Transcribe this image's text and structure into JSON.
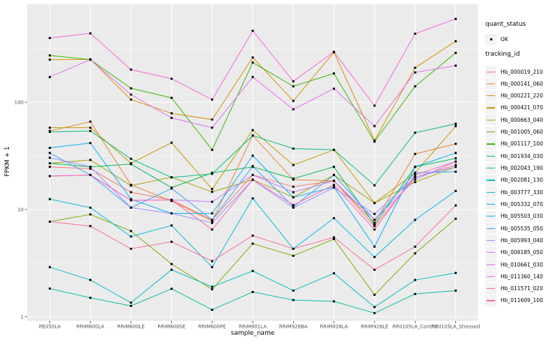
{
  "figure": {
    "background": "#FFFFFF",
    "panel_background": "#EBEBEB",
    "grid_color": "#FFFFFF",
    "tick_label_color": "#4D4D4D",
    "point_color": "#000000",
    "legend_key_fill": "#F2F2F2"
  },
  "chart_data": {
    "type": "line",
    "title": "",
    "xlabel": "sample_name",
    "ylabel": "FPKM + 1",
    "y_scale": "log10",
    "grid": true,
    "legend_position": "right",
    "ylim": [
      1,
      830
    ],
    "y_ticks": [
      {
        "label": "1",
        "value": 1
      },
      {
        "label": "10",
        "value": 10
      },
      {
        "label": "100",
        "value": 100
      }
    ],
    "y_minor_ticks": [
      3.162,
      31.623,
      316.228
    ],
    "categories": [
      "PB350LA",
      "RRIM600LA",
      "RRIM600LE",
      "RRIM600SE",
      "RRIM600PE",
      "RRIM901LA",
      "RRIM928BA",
      "RRIM928LA",
      "RRIM928LE",
      "RRII105LA_Control",
      "RRII105LA_Stressed"
    ],
    "legend": {
      "quant_status": {
        "title": "quant_status",
        "items": [
          {
            "label": "OK",
            "shape": "point",
            "color": "#000000"
          }
        ]
      },
      "tracking_id_title": "tracking_id"
    },
    "series": [
      {
        "name": "Hb_000019_210",
        "color": "#F8766D",
        "values": [
          25,
          24,
          14.5,
          12.3,
          8.0,
          21,
          16.3,
          18.5,
          7.0,
          20,
          26
        ]
      },
      {
        "name": "Hb_000141_060",
        "color": "#EA8331",
        "values": [
          54,
          66,
          17,
          12,
          7.8,
          49,
          19,
          18.5,
          7.5,
          33,
          41
        ]
      },
      {
        "name": "Hb_000221_220",
        "color": "#D89000",
        "values": [
          250,
          252,
          106,
          79,
          69,
          262,
          103,
          293,
          44,
          210,
          372
        ]
      },
      {
        "name": "Hb_000421_070",
        "color": "#C09B00",
        "values": [
          58,
          58,
          27,
          42,
          15.5,
          55,
          26,
          36,
          11.5,
          22,
          60
        ]
      },
      {
        "name": "Hb_000663_040",
        "color": "#A3A500",
        "values": [
          27,
          29,
          16.7,
          20,
          14.6,
          19,
          13,
          21,
          11.5,
          18,
          25
        ]
      },
      {
        "name": "Hb_001005_060",
        "color": "#7CAE00",
        "values": [
          7.7,
          9.0,
          6.3,
          3.1,
          1.8,
          4.8,
          3.7,
          5.3,
          1.6,
          3.9,
          8.2
        ]
      },
      {
        "name": "Hb_001117_100",
        "color": "#39B600",
        "values": [
          274,
          250,
          135,
          110,
          36,
          235,
          141,
          186,
          43,
          141,
          289
        ]
      },
      {
        "name": "Hb_001934_030",
        "color": "#00BB4E",
        "values": [
          27,
          25,
          26.5,
          16,
          22,
          25,
          19.4,
          25,
          7.2,
          25,
          30
        ]
      },
      {
        "name": "Hb_002043_190",
        "color": "#00BF7D",
        "values": [
          53,
          54,
          29.7,
          19.9,
          21.5,
          49,
          37,
          36,
          16.8,
          52,
          63
        ]
      },
      {
        "name": "Hb_002081_130",
        "color": "#00C1A3",
        "values": [
          1.83,
          1.5,
          1.26,
          1.82,
          1.16,
          1.7,
          1.43,
          1.39,
          1.08,
          1.63,
          1.75
        ]
      },
      {
        "name": "Hb_003777_330",
        "color": "#00BFC4",
        "values": [
          2.9,
          2.2,
          1.35,
          2.74,
          1.9,
          2.67,
          1.75,
          2.54,
          1.23,
          2.2,
          2.56
        ]
      },
      {
        "name": "Hb_005332_070",
        "color": "#00BAE0",
        "values": [
          12.5,
          10.4,
          5.6,
          7.1,
          2.9,
          12.7,
          4.3,
          8.3,
          3.6,
          8.0,
          14.9
        ]
      },
      {
        "name": "Hb_005503_030",
        "color": "#00B0F6",
        "values": [
          37.6,
          41.7,
          12.5,
          9.2,
          9.2,
          31.8,
          13,
          16.2,
          4.5,
          25,
          33.7
        ]
      },
      {
        "name": "Hb_005535_050",
        "color": "#35A2FF",
        "values": [
          33.7,
          21,
          10.4,
          15.7,
          8.0,
          25.4,
          10.6,
          21,
          8.0,
          22,
          22.5
        ]
      },
      {
        "name": "Hb_005993_040",
        "color": "#9590FF",
        "values": [
          30.4,
          25,
          10.4,
          9.2,
          7.5,
          18.9,
          10.4,
          16,
          9.1,
          20,
          25
        ]
      },
      {
        "name": "Hb_006185_050",
        "color": "#C77CFF",
        "values": [
          20.5,
          21,
          12.2,
          12.3,
          11.8,
          21,
          14.5,
          18.5,
          8.0,
          19,
          28
        ]
      },
      {
        "name": "Hb_010661_030",
        "color": "#E76BF3",
        "values": [
          172,
          250,
          118,
          71.5,
          58,
          172,
          86,
          134,
          60,
          190,
          220
        ]
      },
      {
        "name": "Hb_011360_140",
        "color": "#FA62DB",
        "values": [
          398,
          440,
          202,
          166,
          106,
          465,
          157,
          296,
          93,
          437,
          600
        ]
      },
      {
        "name": "Hb_011571_020",
        "color": "#FF62BC",
        "values": [
          20.5,
          21,
          12.2,
          12.3,
          6.5,
          19,
          11,
          17,
          6.5,
          21,
          28
        ]
      },
      {
        "name": "Hb_011609_100",
        "color": "#FF6A98",
        "values": [
          7.7,
          7.0,
          4.3,
          5.0,
          3.3,
          5.7,
          4.3,
          5.5,
          2.74,
          4.5,
          10.9
        ]
      }
    ]
  }
}
